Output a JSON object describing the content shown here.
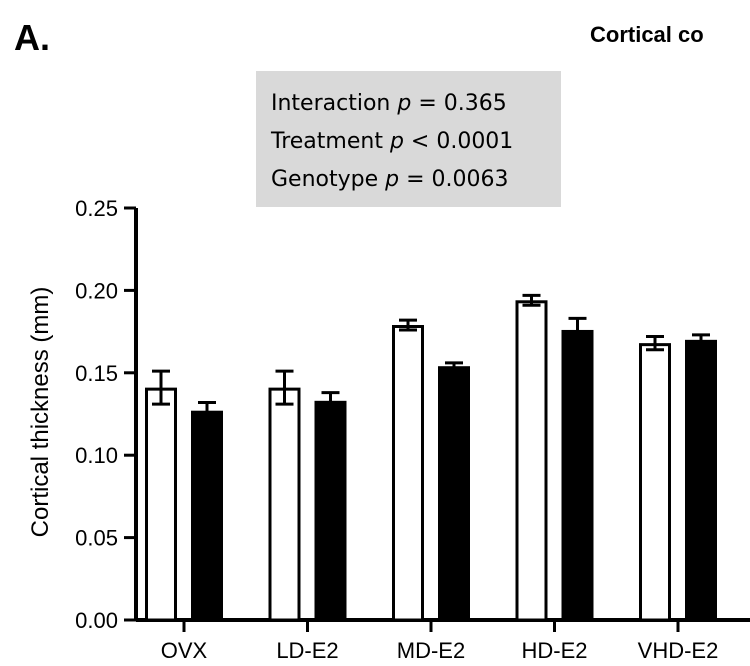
{
  "panel_label": "A.",
  "title": "Cortical co",
  "stats": [
    {
      "label": "Interaction ",
      "var": "p",
      "rest": " = 0.365"
    },
    {
      "label": "Treatment ",
      "var": "p",
      "rest": " < 0.0001"
    },
    {
      "label": "Genotype ",
      "var": "p",
      "rest": " = 0.0063"
    }
  ],
  "colors": {
    "series_a_fill": "#ffffff",
    "series_b_fill": "#000000",
    "stats_box": "#d9d9d9"
  },
  "chart_data": {
    "type": "bar",
    "title": "Cortical co",
    "ylabel": "Cortical thickness (mm)",
    "xlabel": "",
    "ylim": [
      0,
      0.25
    ],
    "yticks": [
      "0.00",
      "0.05",
      "0.10",
      "0.15",
      "0.20",
      "0.25"
    ],
    "categories": [
      "OVX",
      "LD-E2",
      "MD-E2",
      "HD-E2",
      "VHD-E2"
    ],
    "series": [
      {
        "fill": "#ffffff",
        "values": [
          0.141,
          0.141,
          0.179,
          0.194,
          0.168
        ],
        "errors": [
          0.01,
          0.01,
          0.003,
          0.003,
          0.004
        ]
      },
      {
        "fill": "#000000",
        "values": [
          0.127,
          0.133,
          0.154,
          0.176,
          0.17
        ],
        "errors": [
          0.005,
          0.005,
          0.002,
          0.007,
          0.003
        ]
      }
    ]
  }
}
